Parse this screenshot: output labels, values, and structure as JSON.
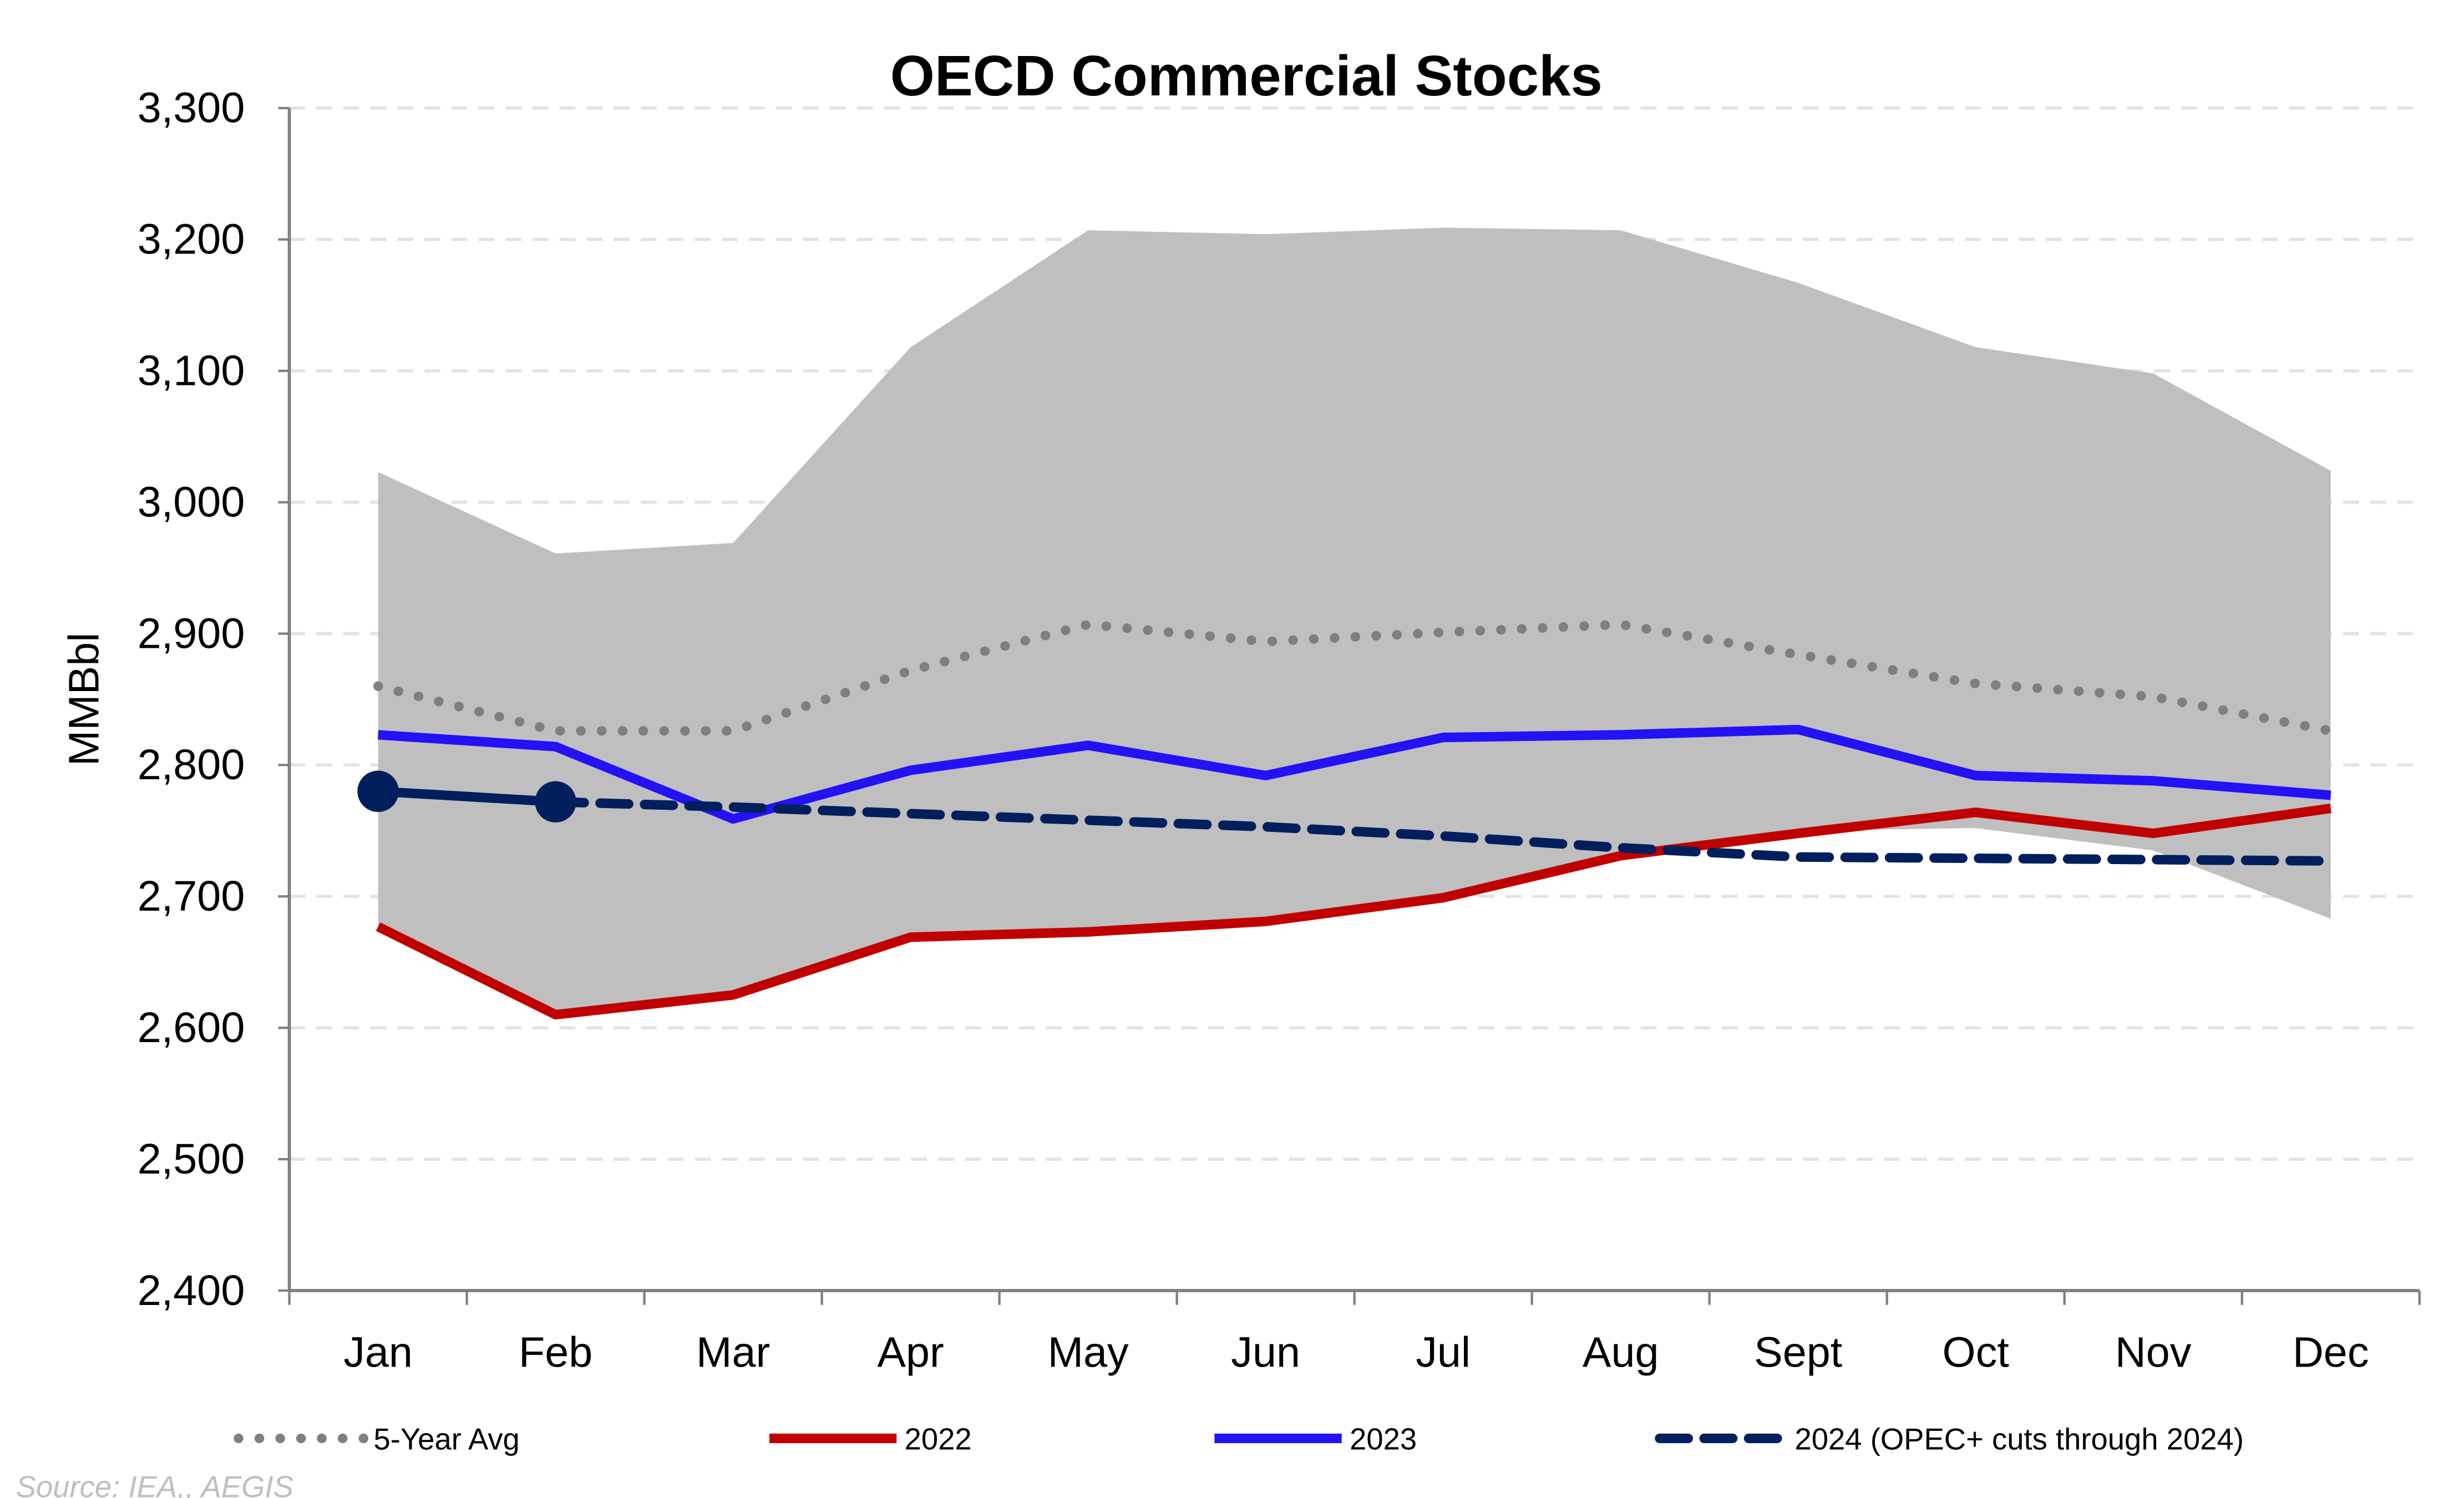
{
  "chart_data": {
    "type": "line",
    "title": "OECD Commercial Stocks",
    "ylabel": "MMBbl",
    "xlabel": "",
    "ylim": [
      2400,
      3300
    ],
    "yticks": [
      "2,400",
      "2,500",
      "2,600",
      "2,700",
      "2,800",
      "2,900",
      "3,000",
      "3,100",
      "3,200",
      "3,300"
    ],
    "ytick_values": [
      2400,
      2500,
      2600,
      2700,
      2800,
      2900,
      3000,
      3100,
      3200,
      3300
    ],
    "grid": "horizontal dashed",
    "legend_position": "bottom",
    "categories": [
      "Jan",
      "Feb",
      "Mar",
      "Apr",
      "May",
      "Jun",
      "Jul",
      "Aug",
      "Sept",
      "Oct",
      "Nov",
      "Dec"
    ],
    "range_band": {
      "upper": [
        3023,
        2961,
        2969,
        3118,
        3207,
        3204,
        3209,
        3207,
        3167,
        3118,
        3098,
        3024
      ],
      "lower": [
        2677,
        2610,
        2625,
        2669,
        2673,
        2681,
        2699,
        2731,
        2750,
        2752,
        2735,
        2683
      ],
      "color": "#bfbfbf"
    },
    "series": [
      {
        "name": "5-Year Avg",
        "values": [
          2860,
          2826,
          2826,
          2872,
          2907,
          2894,
          2901,
          2907,
          2884,
          2862,
          2852,
          2826
        ],
        "color": "#7f7f7f",
        "style": "dotted"
      },
      {
        "name": "2022",
        "values": [
          2677,
          2610,
          2625,
          2669,
          2673,
          2681,
          2699,
          2731,
          2748,
          2764,
          2748,
          2767
        ],
        "color": "#c00000",
        "style": "solid"
      },
      {
        "name": "2023",
        "values": [
          2823,
          2814,
          2759,
          2796,
          2815,
          2792,
          2821,
          2823,
          2827,
          2792,
          2788,
          2777
        ],
        "color": "#2312f5",
        "style": "solid"
      },
      {
        "name": "2024 (OPEC+ cuts through 2024)",
        "values": [
          2780,
          2772,
          2768,
          2763,
          2758,
          2753,
          2746,
          2737,
          2730,
          2729,
          2728,
          2727
        ],
        "color": "#001f5c",
        "style": "dashed",
        "actual_points": 2
      }
    ],
    "source": "Source: IEA,, AEGIS"
  }
}
